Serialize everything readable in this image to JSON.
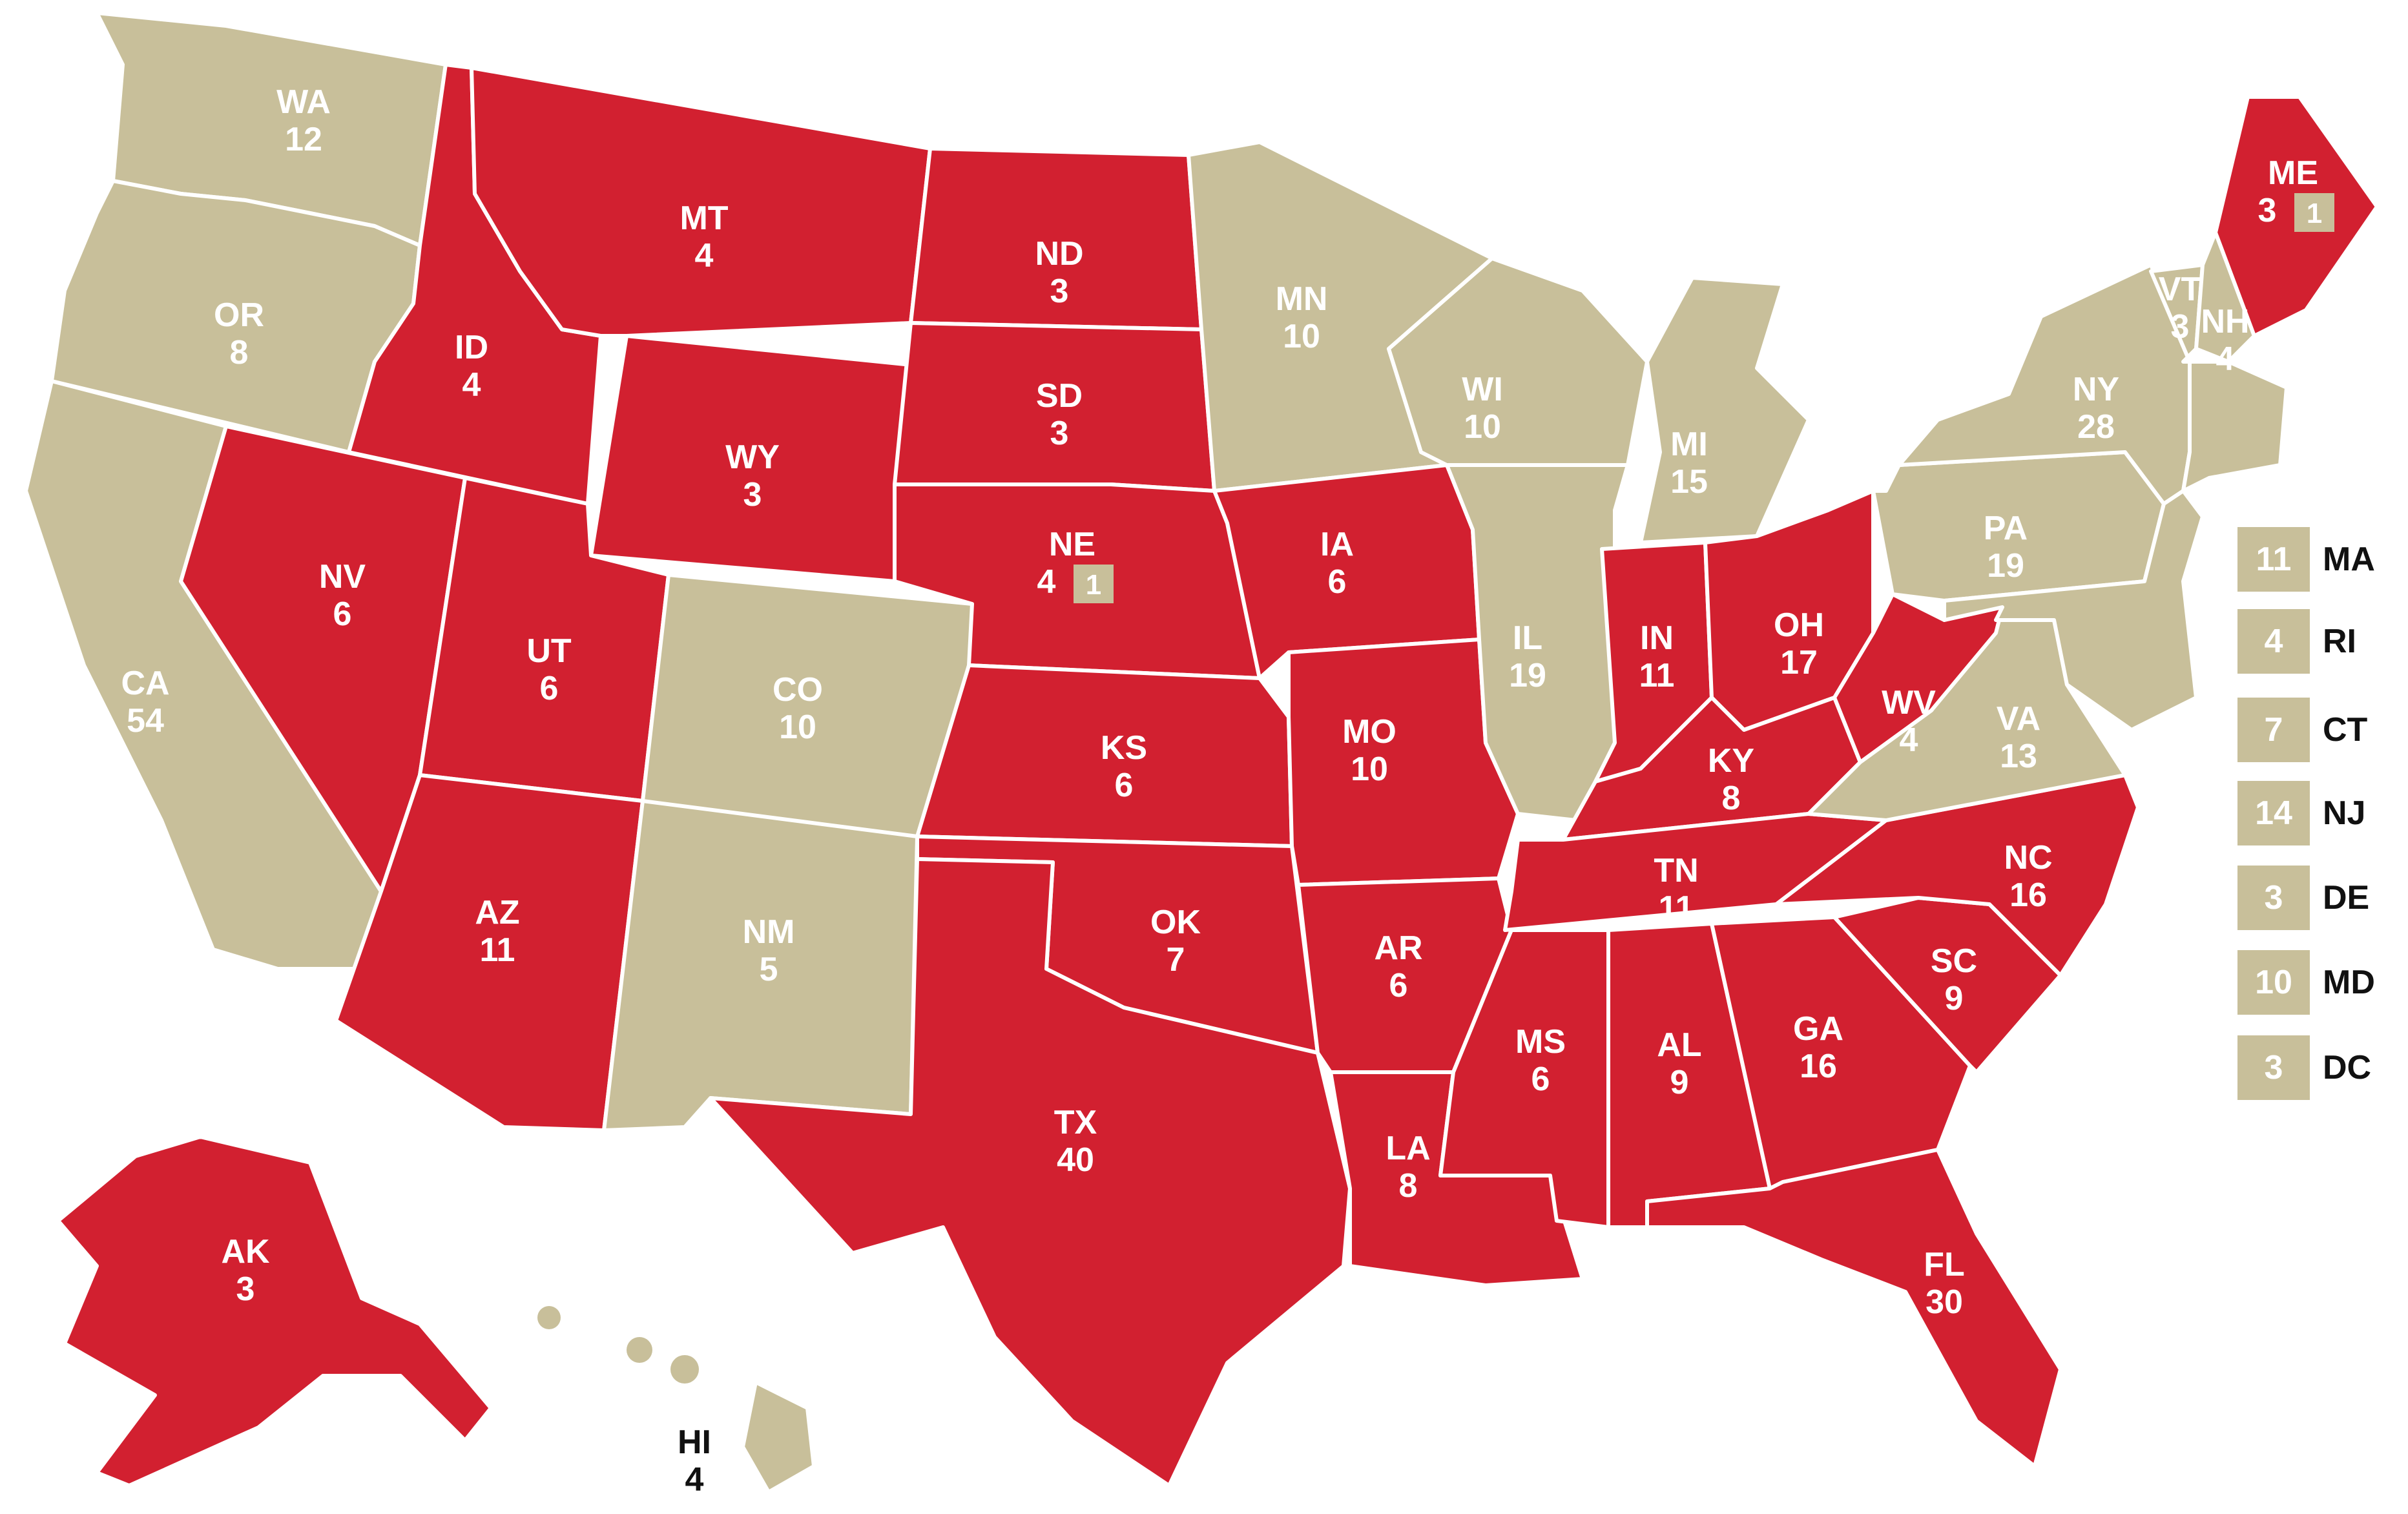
{
  "colors": {
    "republican": "#d22030",
    "democrat": "#c8bf9a",
    "border": "#ffffff"
  },
  "states": [
    {
      "id": "WA",
      "abbr": "WA",
      "votes": "12",
      "party": "democrat"
    },
    {
      "id": "OR",
      "abbr": "OR",
      "votes": "8",
      "party": "democrat"
    },
    {
      "id": "CA",
      "abbr": "CA",
      "votes": "54",
      "party": "democrat"
    },
    {
      "id": "ID",
      "abbr": "ID",
      "votes": "4",
      "party": "republican"
    },
    {
      "id": "NV",
      "abbr": "NV",
      "votes": "6",
      "party": "republican"
    },
    {
      "id": "MT",
      "abbr": "MT",
      "votes": "4",
      "party": "republican"
    },
    {
      "id": "WY",
      "abbr": "WY",
      "votes": "3",
      "party": "republican"
    },
    {
      "id": "UT",
      "abbr": "UT",
      "votes": "6",
      "party": "republican"
    },
    {
      "id": "AZ",
      "abbr": "AZ",
      "votes": "11",
      "party": "republican"
    },
    {
      "id": "CO",
      "abbr": "CO",
      "votes": "10",
      "party": "democrat"
    },
    {
      "id": "NM",
      "abbr": "NM",
      "votes": "5",
      "party": "democrat"
    },
    {
      "id": "ND",
      "abbr": "ND",
      "votes": "3",
      "party": "republican"
    },
    {
      "id": "SD",
      "abbr": "SD",
      "votes": "3",
      "party": "republican"
    },
    {
      "id": "NE",
      "abbr": "NE",
      "votes": "4",
      "party": "republican",
      "split": "1"
    },
    {
      "id": "KS",
      "abbr": "KS",
      "votes": "6",
      "party": "republican"
    },
    {
      "id": "OK",
      "abbr": "OK",
      "votes": "7",
      "party": "republican"
    },
    {
      "id": "TX",
      "abbr": "TX",
      "votes": "40",
      "party": "republican"
    },
    {
      "id": "MN",
      "abbr": "MN",
      "votes": "10",
      "party": "democrat"
    },
    {
      "id": "IA",
      "abbr": "IA",
      "votes": "6",
      "party": "republican"
    },
    {
      "id": "MO",
      "abbr": "MO",
      "votes": "10",
      "party": "republican"
    },
    {
      "id": "AR",
      "abbr": "AR",
      "votes": "6",
      "party": "republican"
    },
    {
      "id": "LA",
      "abbr": "LA",
      "votes": "8",
      "party": "republican"
    },
    {
      "id": "WI",
      "abbr": "WI",
      "votes": "10",
      "party": "democrat"
    },
    {
      "id": "IL",
      "abbr": "IL",
      "votes": "19",
      "party": "democrat"
    },
    {
      "id": "MI",
      "abbr": "MI",
      "votes": "15",
      "party": "democrat"
    },
    {
      "id": "IN",
      "abbr": "IN",
      "votes": "11",
      "party": "republican"
    },
    {
      "id": "OH",
      "abbr": "OH",
      "votes": "17",
      "party": "republican"
    },
    {
      "id": "KY",
      "abbr": "KY",
      "votes": "8",
      "party": "republican"
    },
    {
      "id": "TN",
      "abbr": "TN",
      "votes": "11",
      "party": "republican"
    },
    {
      "id": "MS",
      "abbr": "MS",
      "votes": "6",
      "party": "republican"
    },
    {
      "id": "AL",
      "abbr": "AL",
      "votes": "9",
      "party": "republican"
    },
    {
      "id": "GA",
      "abbr": "GA",
      "votes": "16",
      "party": "republican"
    },
    {
      "id": "FL",
      "abbr": "FL",
      "votes": "30",
      "party": "republican"
    },
    {
      "id": "SC",
      "abbr": "SC",
      "votes": "9",
      "party": "republican"
    },
    {
      "id": "NC",
      "abbr": "NC",
      "votes": "16",
      "party": "republican"
    },
    {
      "id": "VA",
      "abbr": "VA",
      "votes": "13",
      "party": "democrat"
    },
    {
      "id": "WV",
      "abbr": "WV",
      "votes": "4",
      "party": "republican"
    },
    {
      "id": "PA",
      "abbr": "PA",
      "votes": "19",
      "party": "democrat"
    },
    {
      "id": "NY",
      "abbr": "NY",
      "votes": "28",
      "party": "democrat"
    },
    {
      "id": "VT",
      "abbr": "VT",
      "votes": "3",
      "party": "democrat"
    },
    {
      "id": "NH",
      "abbr": "NH",
      "votes": "4",
      "party": "democrat"
    },
    {
      "id": "ME",
      "abbr": "ME",
      "votes": "3",
      "party": "republican",
      "split": "1"
    },
    {
      "id": "AK",
      "abbr": "AK",
      "votes": "3",
      "party": "republican"
    },
    {
      "id": "HI",
      "abbr": "HI",
      "votes": "4",
      "party": "democrat"
    }
  ],
  "legend": [
    {
      "votes": "11",
      "abbr": "MA"
    },
    {
      "votes": "4",
      "abbr": "RI"
    },
    {
      "votes": "7",
      "abbr": "CT"
    },
    {
      "votes": "14",
      "abbr": "NJ"
    },
    {
      "votes": "3",
      "abbr": "DE"
    },
    {
      "votes": "10",
      "abbr": "MD"
    },
    {
      "votes": "3",
      "abbr": "DC"
    }
  ]
}
